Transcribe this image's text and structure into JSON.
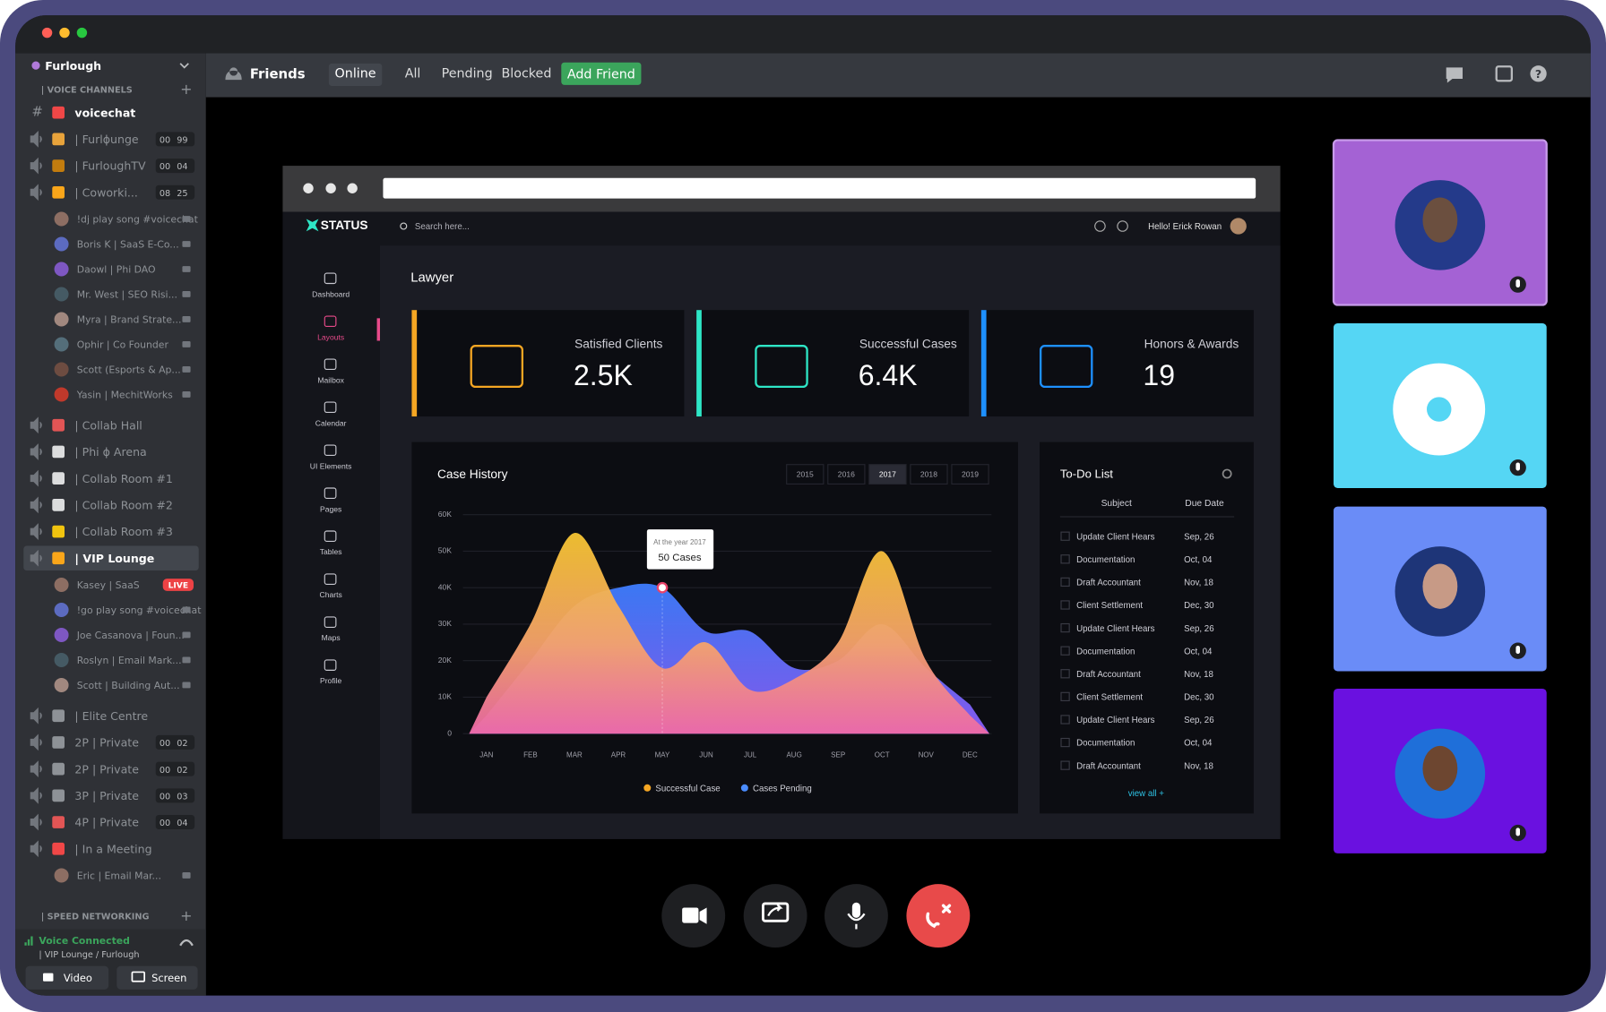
{
  "topbar": {
    "title": "Friends",
    "tabs": [
      "Online",
      "All",
      "Pending",
      "Blocked"
    ],
    "add_friend": "Add Friend"
  },
  "sidebar": {
    "server_name": "Furlough",
    "voice_section": "| VOICE CHANNELS",
    "channels": [
      {
        "name": "voicechat",
        "unread": true
      },
      {
        "name": "| Furlɸunge",
        "counts": [
          "00",
          "99"
        ]
      },
      {
        "name": "| FurloughTV",
        "counts": [
          "00",
          "04"
        ]
      },
      {
        "name": "| Coworki...",
        "counts": [
          "08",
          "25"
        ],
        "members": [
          {
            "name": "!dj play song #voicechat"
          },
          {
            "name": "Boris K | SaaS E-Co..."
          },
          {
            "name": "Daowl | Phi DAO"
          },
          {
            "name": "Mr. West | SEO Risi..."
          },
          {
            "name": "Myra | Brand Strate..."
          },
          {
            "name": "Ophir | Co Founder"
          },
          {
            "name": "Scott (Esports & Ap..."
          },
          {
            "name": "Yasin | MechitWorks"
          }
        ]
      },
      {
        "name": "| Collab Hall"
      },
      {
        "name": "| Phi ɸ Arena"
      },
      {
        "name": "| Collab Room #1"
      },
      {
        "name": "| Collab Room #2"
      },
      {
        "name": "| Collab Room #3"
      },
      {
        "name": "| VIP Lounge",
        "selected": true,
        "members": [
          {
            "name": "Kasey | SaaS",
            "badge": "LIVE"
          },
          {
            "name": "!go play song #voicechat"
          },
          {
            "name": "Joe Casanova | Foun..."
          },
          {
            "name": "Roslyn | Email Mark..."
          },
          {
            "name": "Scott | Building Aut..."
          }
        ]
      },
      {
        "name": "| Elite Centre"
      },
      {
        "name": "2P | Private",
        "counts": [
          "00",
          "02"
        ]
      },
      {
        "name": "2P | Private",
        "counts": [
          "00",
          "02"
        ]
      },
      {
        "name": "3P | Private",
        "counts": [
          "00",
          "03"
        ]
      },
      {
        "name": "4P | Private",
        "counts": [
          "00",
          "04"
        ]
      },
      {
        "name": "| In a Meeting",
        "members": [
          {
            "name": "Eric | Email Mar..."
          }
        ]
      }
    ],
    "speed_section": "| SPEED NETWORKING",
    "status": "Voice Connected",
    "status_location": "| VIP Lounge / Furlough",
    "video_button": "Video",
    "screen_button": "Screen"
  },
  "shared_screen": {
    "brand": "STATUS",
    "search": "Search here...",
    "greeting": "Hello! Erick Rowan",
    "nav": [
      "Dashboard",
      "Layouts",
      "Mailbox",
      "Calendar",
      "UI Elements",
      "Pages",
      "Tables",
      "Charts",
      "Maps",
      "Profile"
    ],
    "active_nav": 1,
    "page_title": "Lawyer",
    "stats": [
      {
        "label": "Satisfied Clients",
        "value": "2.5K",
        "color": "#f5a623"
      },
      {
        "label": "Successful Cases",
        "value": "6.4K",
        "color": "#2ee6c6"
      },
      {
        "label": "Honors & Awards",
        "value": "19",
        "color": "#1e90ff"
      }
    ],
    "todo": {
      "title": "To-Do List",
      "columns": [
        "Subject",
        "Due Date"
      ],
      "rows": [
        [
          "Update Client Hears",
          "Sep, 26"
        ],
        [
          "Documentation",
          "Oct, 04"
        ],
        [
          "Draft Accountant",
          "Nov, 18"
        ],
        [
          "Client Settlement",
          "Dec, 30"
        ],
        [
          "Update Client Hears",
          "Sep, 26"
        ],
        [
          "Documentation",
          "Oct, 04"
        ],
        [
          "Draft Accountant",
          "Nov, 18"
        ],
        [
          "Client Settlement",
          "Dec, 30"
        ],
        [
          "Update Client Hears",
          "Sep, 26"
        ],
        [
          "Documentation",
          "Oct, 04"
        ],
        [
          "Draft Accountant",
          "Nov, 18"
        ]
      ],
      "footer": "view all +"
    }
  },
  "chart_data": {
    "type": "area",
    "title": "Case History",
    "tabs": [
      "2015",
      "2016",
      "2017",
      "2018",
      "2019"
    ],
    "selected_tab": 2,
    "categories": [
      "JAN",
      "FEB",
      "MAR",
      "APR",
      "MAY",
      "JUN",
      "JUL",
      "AUG",
      "SEP",
      "OCT",
      "NOV",
      "DEC"
    ],
    "series": [
      {
        "name": "Cases Pending",
        "color": "#4a8cff",
        "values": [
          5000,
          20000,
          35000,
          40000,
          40000,
          28000,
          28000,
          18000,
          20000,
          30000,
          18000,
          8000
        ]
      },
      {
        "name": "Successful Case",
        "color": "#f5a623",
        "values": [
          10000,
          30000,
          55000,
          35000,
          18000,
          25000,
          12000,
          15000,
          25000,
          50000,
          20000,
          5000
        ]
      }
    ],
    "ylim": [
      0,
      60000
    ],
    "yticks": [
      0,
      {
        "value": 10000,
        "label": "10K"
      },
      {
        "value": 20000,
        "label": "20K"
      },
      {
        "value": 30000,
        "label": "30K"
      },
      {
        "value": 40000,
        "label": "40K"
      },
      {
        "value": 50000,
        "label": "50K"
      },
      {
        "value": 60000,
        "label": "60K"
      }
    ],
    "grid": true,
    "annotation": {
      "label": "At the year 2017",
      "text": "50 Cases",
      "x": "MAY"
    }
  }
}
